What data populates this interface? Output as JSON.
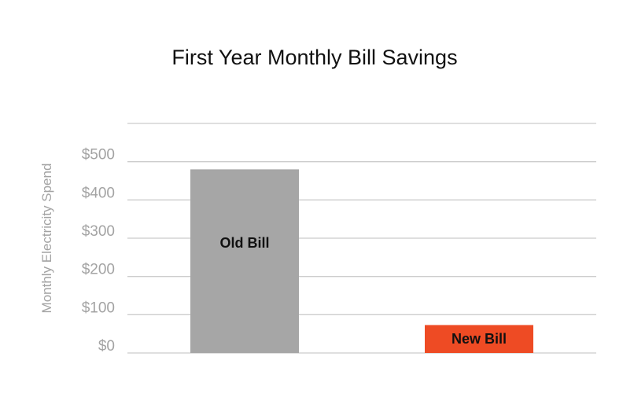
{
  "chart_data": {
    "type": "bar",
    "title": "First Year Monthly Bill Savings",
    "ylabel": "Monthly Electricity Spend",
    "xlabel": "",
    "categories": [
      "Old Bill",
      "New Bill"
    ],
    "values": [
      480,
      73
    ],
    "bar_colors": [
      "#a6a6a6",
      "#ee4b24"
    ],
    "ylim": [
      0,
      600
    ],
    "yticks": [
      0,
      100,
      200,
      300,
      400,
      500
    ],
    "ytick_labels": [
      "$0",
      "$100",
      "$200",
      "$300",
      "$400",
      "$500"
    ],
    "grid": true,
    "legend": "none"
  }
}
